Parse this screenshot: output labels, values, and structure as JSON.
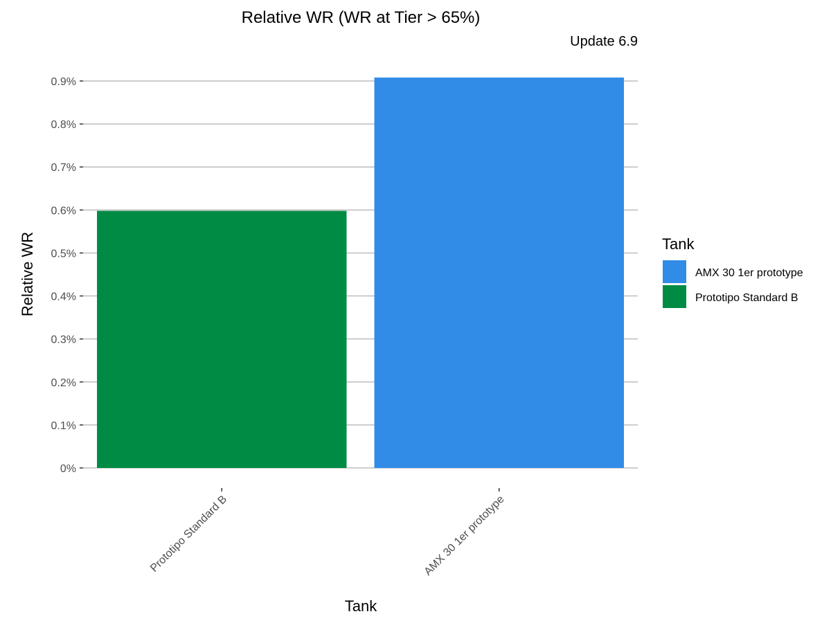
{
  "chart_data": {
    "type": "bar",
    "title": "Relative WR (WR at Tier > 65%)",
    "subtitle": "Update 6.9",
    "xlabel": "Tank",
    "ylabel": "Relative WR",
    "categories": [
      "Prototipo Standard B",
      "AMX 30 1er prototype"
    ],
    "values": [
      0.598,
      0.908
    ],
    "colors": [
      "#008B45",
      "#318CE7"
    ],
    "ylim": [
      0,
      0.9
    ],
    "yticks": [
      0,
      0.1,
      0.2,
      0.3,
      0.4,
      0.5,
      0.6,
      0.7,
      0.8,
      0.9
    ],
    "ytick_labels": [
      "0%",
      "0.1%",
      "0.2%",
      "0.3%",
      "0.4%",
      "0.5%",
      "0.6%",
      "0.7%",
      "0.8%",
      "0.9%"
    ],
    "grid": true,
    "legend": {
      "title": "Tank",
      "position": "right",
      "items": [
        {
          "label": "AMX 30 1er prototype",
          "color": "#318CE7"
        },
        {
          "label": "Prototipo Standard B",
          "color": "#008B45"
        }
      ]
    }
  }
}
